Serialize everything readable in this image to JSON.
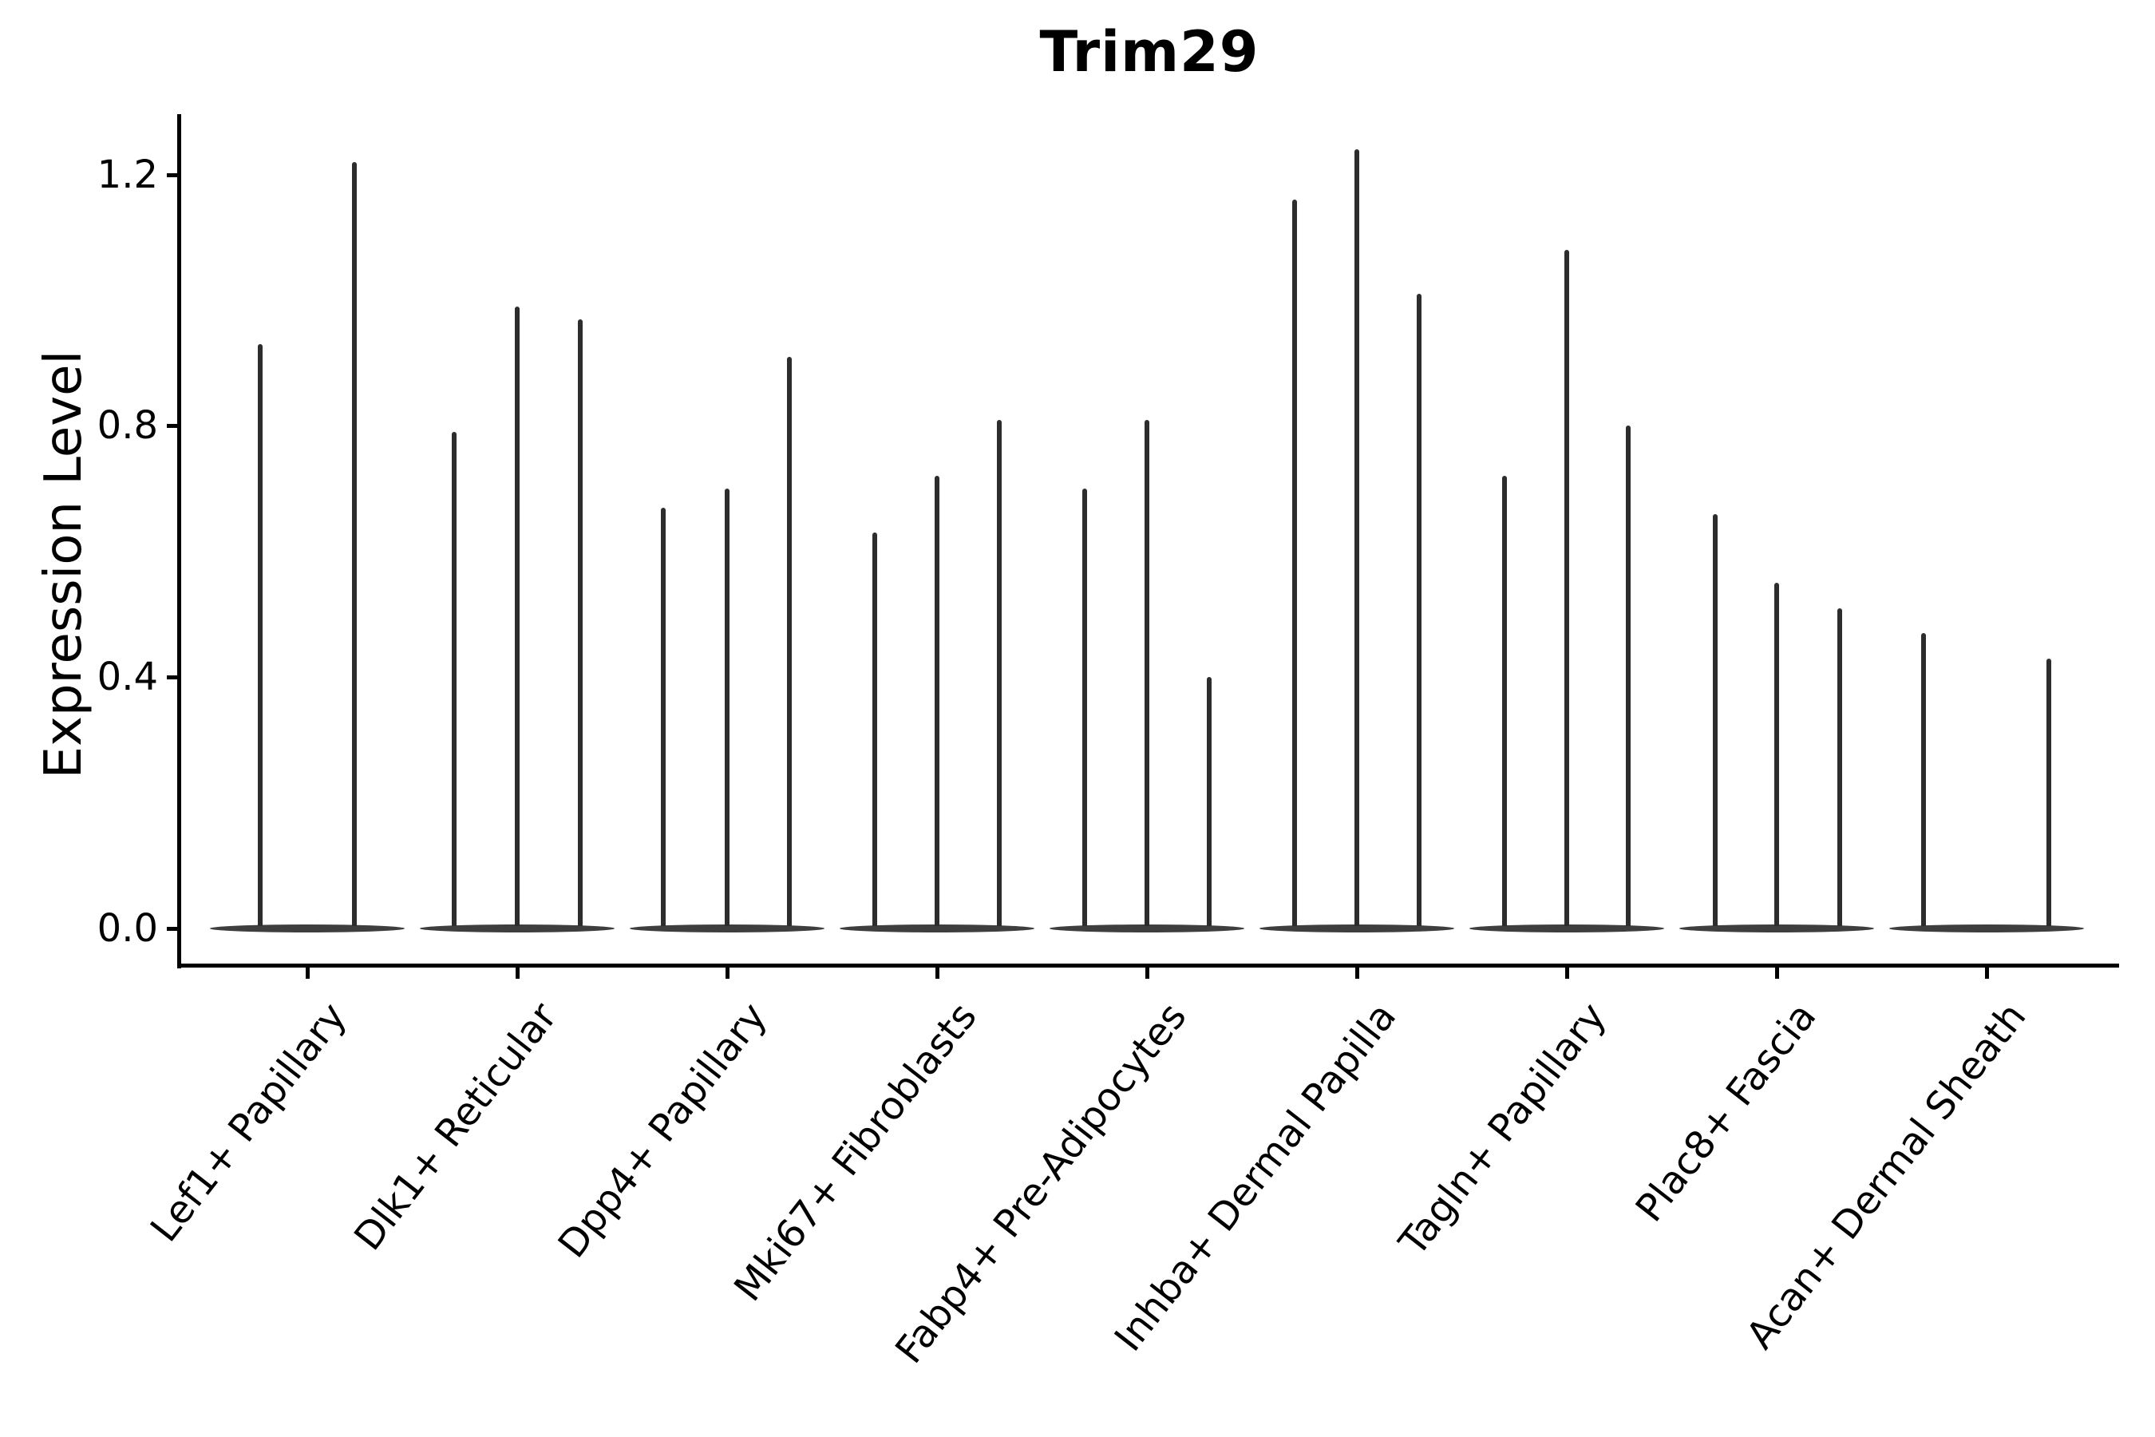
{
  "title": "Trim29",
  "axes": {
    "ylabel": "Expression Level",
    "ytick_labels": [
      "0.0",
      "0.4",
      "0.8",
      "1.2"
    ],
    "ytick_values": [
      0.0,
      0.4,
      0.8,
      1.2
    ]
  },
  "chart_data": {
    "type": "violin",
    "title": "Trim29",
    "xlabel": "",
    "ylabel": "Expression Level",
    "ylim": [
      0,
      1.3
    ],
    "yticks": [
      0.0,
      0.4,
      0.8,
      1.2
    ],
    "ytick_labels": [
      "0.0",
      "0.4",
      "0.8",
      "1.2"
    ],
    "grid": false,
    "legend": false,
    "description": "Sparse single-cell expression violins: each cell-type group shows a flat density disc at 0 plus thin spikes; spike entries give x-offset (px from group center) and max expression value reached.",
    "categories": [
      "Lef1+ Papillary",
      "Dlk1+ Reticular",
      "Dpp4+ Papillary",
      "Mki67+ Fibroblasts",
      "Fabp4+ Pre-Adipocytes",
      "Inhba+ Dermal Papilla",
      "Tagln+ Papillary",
      "Plac8+ Fascia",
      "Acan+ Dermal Sheath"
    ],
    "groups": [
      {
        "label": "Lef1+ Papillary",
        "violins": [
          {
            "offset": -59,
            "max": 0.93
          },
          {
            "offset": 59,
            "max": 1.22
          }
        ]
      },
      {
        "label": "Dlk1+ Reticular",
        "violins": [
          {
            "offset": -79,
            "max": 0.79
          },
          {
            "offset": 0,
            "max": 0.99
          },
          {
            "offset": 79,
            "max": 0.97
          }
        ]
      },
      {
        "label": "Dpp4+ Papillary",
        "violins": [
          {
            "offset": -80,
            "max": 0.67
          },
          {
            "offset": 0,
            "max": 0.7
          },
          {
            "offset": 78,
            "max": 0.91
          }
        ]
      },
      {
        "label": "Mki67+ Fibroblasts",
        "violins": [
          {
            "offset": -78,
            "max": 0.63
          },
          {
            "offset": 0,
            "max": 0.72
          },
          {
            "offset": 78,
            "max": 0.81
          }
        ]
      },
      {
        "label": "Fabp4+ Pre-Adipocytes",
        "violins": [
          {
            "offset": -78,
            "max": 0.7
          },
          {
            "offset": 0,
            "max": 0.81
          },
          {
            "offset": 78,
            "max": 0.4
          }
        ]
      },
      {
        "label": "Inhba+ Dermal Papilla",
        "violins": [
          {
            "offset": -78,
            "max": 1.16
          },
          {
            "offset": 0,
            "max": 1.24
          },
          {
            "offset": 78,
            "max": 1.01
          }
        ]
      },
      {
        "label": "Tagln+ Papillary",
        "violins": [
          {
            "offset": -78,
            "max": 0.72
          },
          {
            "offset": 0,
            "max": 1.08
          },
          {
            "offset": 77,
            "max": 0.8
          }
        ]
      },
      {
        "label": "Plac8+ Fascia",
        "violins": [
          {
            "offset": -77,
            "max": 0.66
          },
          {
            "offset": 0,
            "max": 0.55
          },
          {
            "offset": 79,
            "max": 0.51
          }
        ]
      },
      {
        "label": "Acan+ Dermal Sheath",
        "violins": [
          {
            "offset": -79,
            "max": 0.47
          },
          {
            "offset": 78,
            "max": 0.43
          }
        ]
      }
    ],
    "baseline_value": 0.0
  },
  "style": {
    "spike_color": "#2d2d2d",
    "baseline_color": "#3e3e3e",
    "axis_color": "#000000",
    "background": "#ffffff"
  }
}
